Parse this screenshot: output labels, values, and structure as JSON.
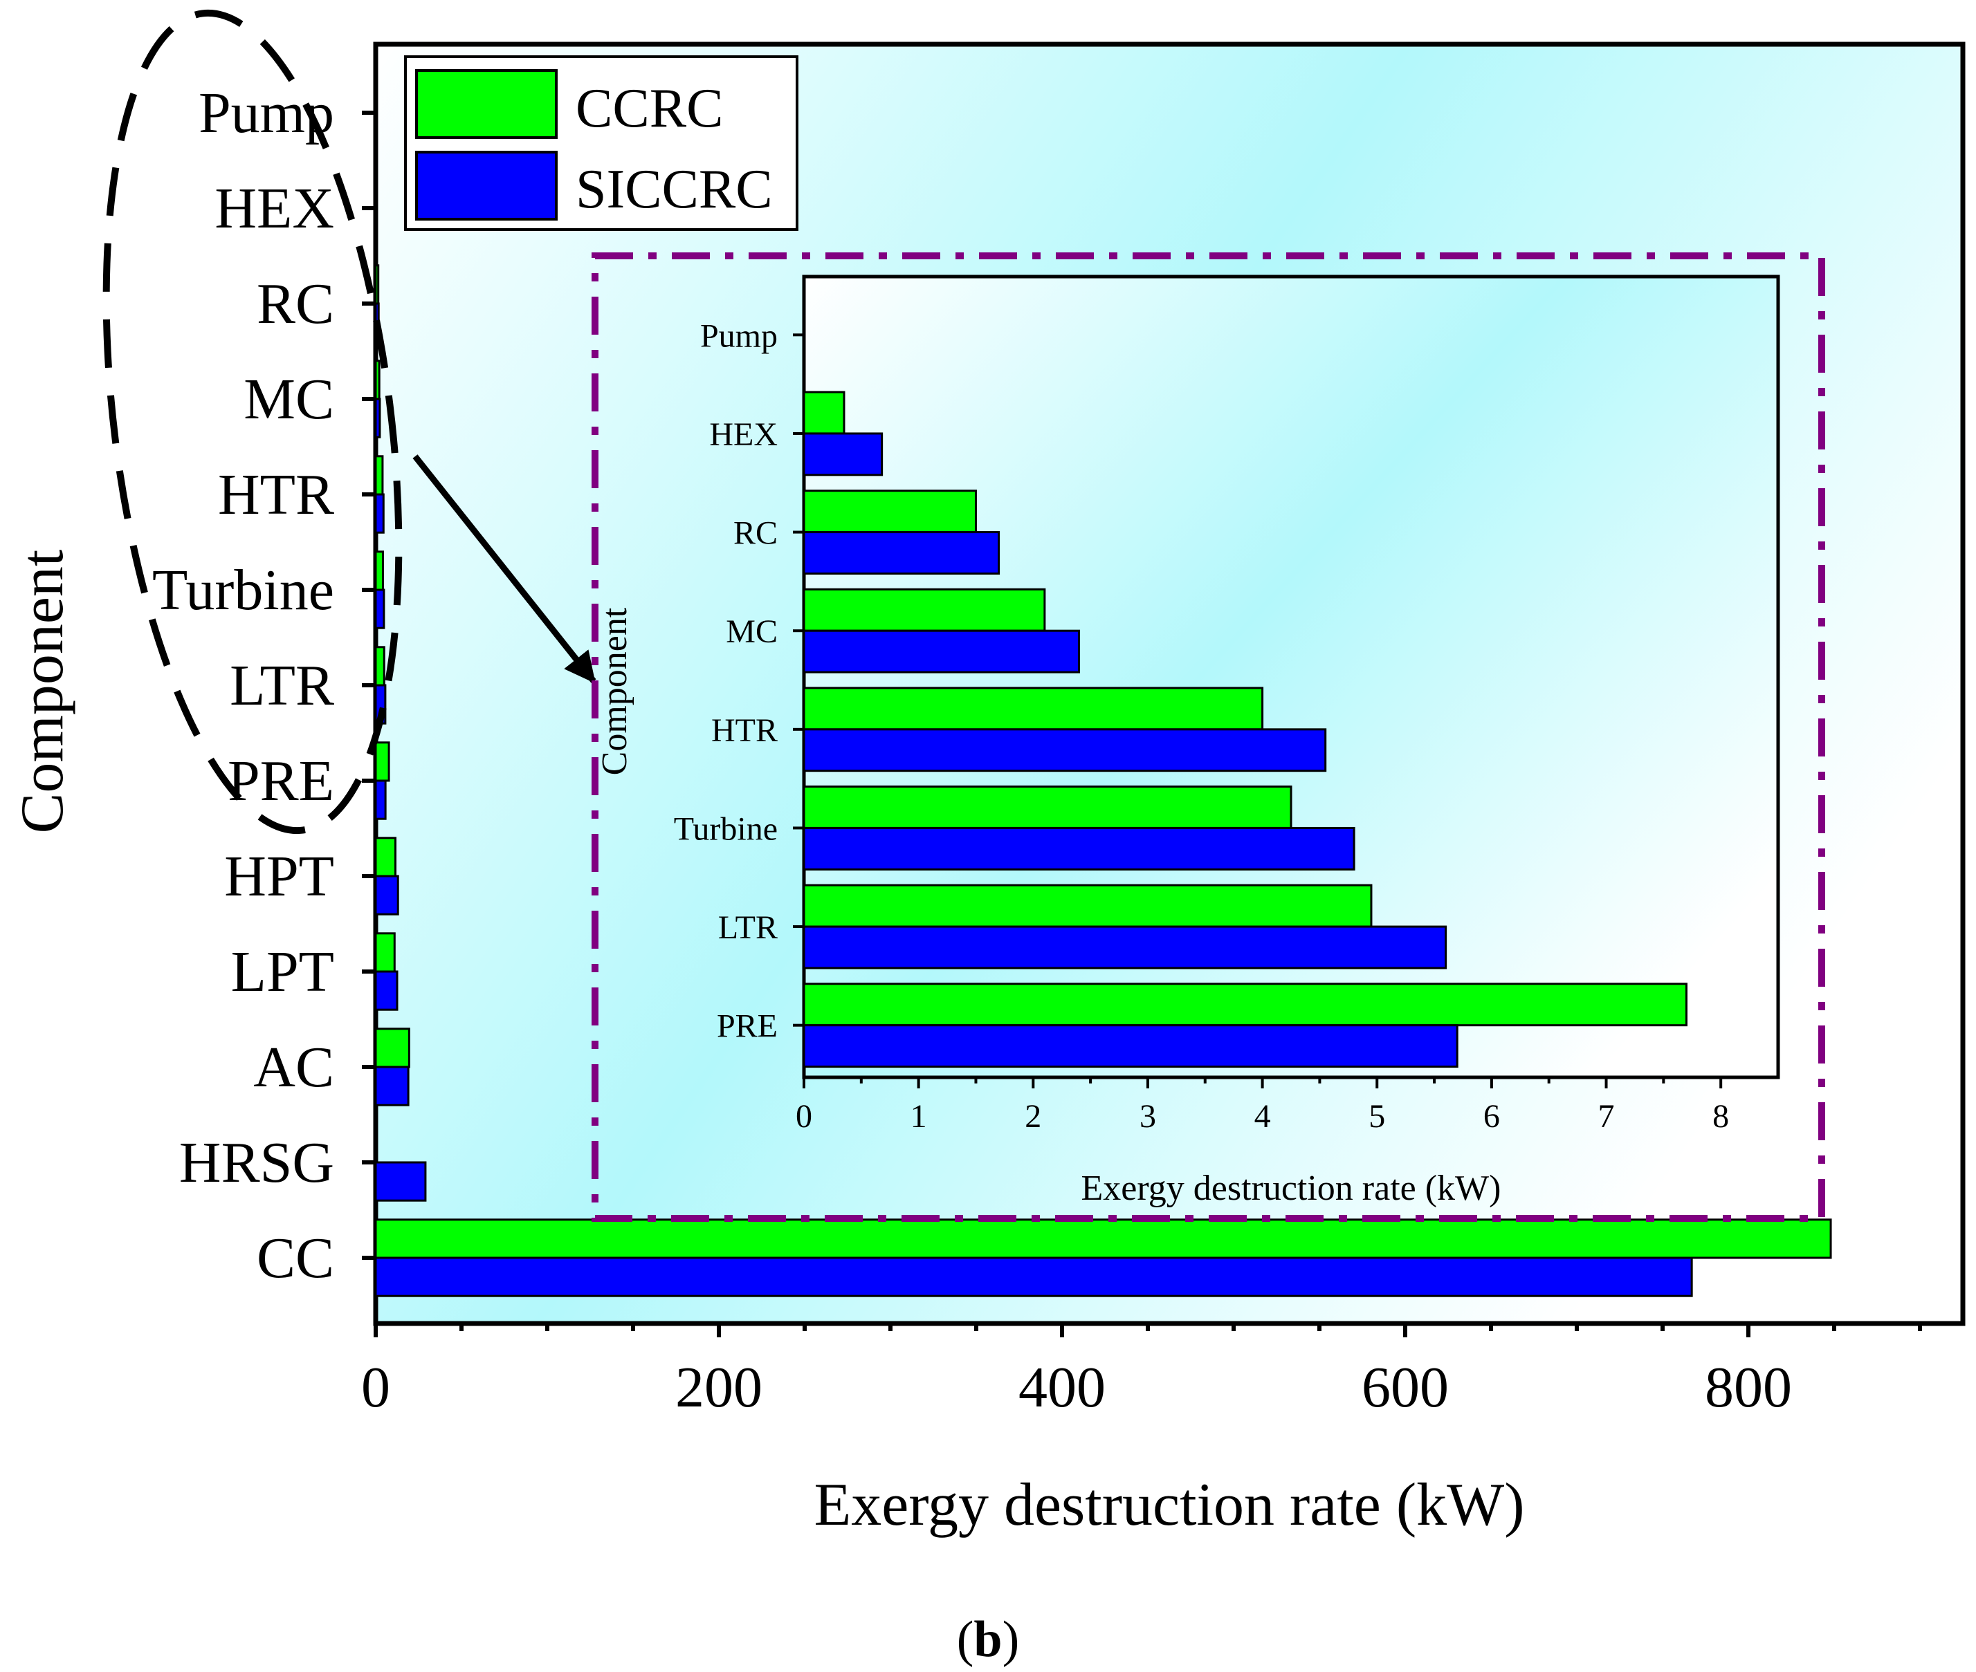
{
  "colors": {
    "series_ccrc": "#00ff00",
    "series_siccrc": "#0000ff",
    "bg_left": "#ffffff",
    "bg_mid": "#b3f8fb",
    "inset_frame": "#800080"
  },
  "legend": {
    "items": [
      {
        "label": "CCRC",
        "color": "#00ff00"
      },
      {
        "label": "SICCRC",
        "color": "#0000ff"
      }
    ]
  },
  "caption": {
    "open": "(",
    "letter": "b",
    "close": ")"
  },
  "chart_data": [
    {
      "id": "main",
      "type": "bar",
      "orientation": "horizontal",
      "categories": [
        "Pump",
        "HEX",
        "RC",
        "MC",
        "HTR",
        "Turbine",
        "LTR",
        "PRE",
        "HPT",
        "LPT",
        "AC",
        "HRSG",
        "CC"
      ],
      "series": [
        {
          "name": "CCRC",
          "color": "#00ff00",
          "values": [
            0.0,
            0.35,
            1.5,
            2.1,
            4.0,
            4.25,
            4.95,
            7.7,
            11.5,
            11.0,
            19.5,
            0.0,
            848
          ]
        },
        {
          "name": "SICCRC",
          "color": "#0000ff",
          "values": [
            0.0,
            0.68,
            1.7,
            2.4,
            4.55,
            4.8,
            5.6,
            5.7,
            13.0,
            12.5,
            19.0,
            29.0,
            767
          ]
        }
      ],
      "xlabel": "Exergy destruction rate (kW)",
      "ylabel": "Component",
      "xlim": [
        0,
        925
      ],
      "xticks": [
        0,
        200,
        400,
        600,
        800
      ],
      "xtick_labels": [
        "0",
        "200",
        "400",
        "600",
        "800"
      ]
    },
    {
      "id": "inset",
      "type": "bar",
      "orientation": "horizontal",
      "categories": [
        "Pump",
        "HEX",
        "RC",
        "MC",
        "HTR",
        "Turbine",
        "LTR",
        "PRE"
      ],
      "series": [
        {
          "name": "CCRC",
          "color": "#00ff00",
          "values": [
            0.0,
            0.35,
            1.5,
            2.1,
            4.0,
            4.25,
            4.95,
            7.7
          ]
        },
        {
          "name": "SICCRC",
          "color": "#0000ff",
          "values": [
            0.0,
            0.68,
            1.7,
            2.4,
            4.55,
            4.8,
            5.6,
            5.7
          ]
        }
      ],
      "xlabel": "Exergy destruction rate (kW)",
      "ylabel": "Component",
      "xlim": [
        0,
        8.5
      ],
      "xticks": [
        0,
        1,
        2,
        3,
        4,
        5,
        6,
        7,
        8
      ],
      "xtick_labels": [
        "0",
        "1",
        "2",
        "3",
        "4",
        "5",
        "6",
        "7",
        "8"
      ]
    }
  ]
}
